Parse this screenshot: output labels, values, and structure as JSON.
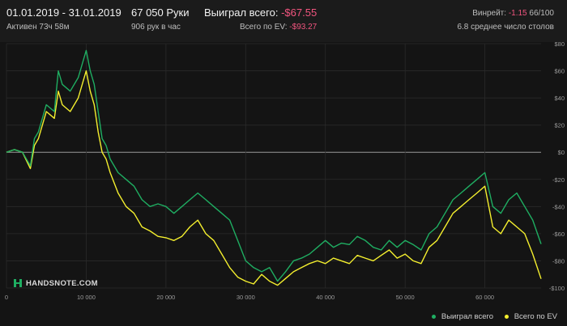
{
  "header": {
    "date_range": "01.01.2019 - 31.01.2019",
    "active": "Активен 73ч 58м",
    "hands": "67 050 Руки",
    "hands_per_hour": "906 рук в час",
    "won_label": "Выиграл всего:",
    "won_value": "-$67.55",
    "ev_label": "Всего по EV:",
    "ev_value": "-$93.27",
    "winrate_label": "Винрейт:",
    "winrate_value": "-1.15",
    "winrate_rest": "66/100",
    "tables": "6.8 среднее число столов"
  },
  "logo_text": "HANDSNOTE.COM",
  "colors": {
    "won": "#1fae62",
    "ev": "#f4ef2e",
    "background": "#141414",
    "negative": "#f2557f"
  },
  "chart_data": {
    "type": "line",
    "xlim": [
      0,
      67050
    ],
    "ylim": [
      -100,
      80
    ],
    "x_ticks": [
      0,
      10000,
      20000,
      30000,
      40000,
      50000,
      60000
    ],
    "x_tick_labels": [
      "0",
      "10 000",
      "20 000",
      "30 000",
      "40 000",
      "50 000",
      "60 000"
    ],
    "y_ticks": [
      80,
      60,
      40,
      20,
      0,
      -20,
      -40,
      -60,
      -80,
      -100
    ],
    "y_tick_labels": [
      "$80",
      "$60",
      "$40",
      "$20",
      "$0",
      "-$20",
      "-$40",
      "-$60",
      "-$80",
      "-$100"
    ],
    "grid": true,
    "legend_position": "bottom-right",
    "series": [
      {
        "name": "Выиграл всего",
        "color": "#1fae62",
        "x": [
          0,
          1000,
          2000,
          3000,
          3500,
          4000,
          5000,
          6000,
          6500,
          7000,
          8000,
          9000,
          9500,
          10000,
          10500,
          11000,
          11500,
          12000,
          12500,
          13000,
          14000,
          15000,
          16000,
          17000,
          18000,
          19000,
          20000,
          21000,
          22000,
          23000,
          24000,
          25000,
          26000,
          27000,
          28000,
          29000,
          30000,
          31000,
          32000,
          33000,
          34000,
          35000,
          36000,
          37000,
          38000,
          39000,
          40000,
          41000,
          42000,
          43000,
          44000,
          45000,
          46000,
          47000,
          48000,
          49000,
          50000,
          51000,
          52000,
          53000,
          54000,
          55000,
          56000,
          57000,
          58000,
          59000,
          60000,
          61000,
          62000,
          63000,
          64000,
          65000,
          66000,
          67050
        ],
        "y": [
          0,
          2,
          0,
          -10,
          10,
          15,
          35,
          30,
          60,
          50,
          45,
          55,
          65,
          75,
          60,
          50,
          30,
          10,
          5,
          -5,
          -15,
          -20,
          -25,
          -35,
          -40,
          -38,
          -40,
          -45,
          -40,
          -35,
          -30,
          -35,
          -40,
          -45,
          -50,
          -65,
          -80,
          -85,
          -88,
          -85,
          -95,
          -88,
          -80,
          -78,
          -75,
          -70,
          -65,
          -70,
          -67,
          -68,
          -62,
          -65,
          -70,
          -72,
          -65,
          -70,
          -65,
          -68,
          -72,
          -60,
          -55,
          -45,
          -35,
          -30,
          -25,
          -20,
          -15,
          -40,
          -45,
          -35,
          -30,
          -40,
          -50,
          -67.55
        ]
      },
      {
        "name": "Всего по EV",
        "color": "#f4ef2e",
        "x": [
          0,
          1000,
          2000,
          3000,
          3500,
          4000,
          5000,
          6000,
          6500,
          7000,
          8000,
          9000,
          9500,
          10000,
          10500,
          11000,
          11500,
          12000,
          12500,
          13000,
          14000,
          15000,
          16000,
          17000,
          18000,
          19000,
          20000,
          21000,
          22000,
          23000,
          24000,
          25000,
          26000,
          27000,
          28000,
          29000,
          30000,
          31000,
          32000,
          33000,
          34000,
          35000,
          36000,
          37000,
          38000,
          39000,
          40000,
          41000,
          42000,
          43000,
          44000,
          45000,
          46000,
          47000,
          48000,
          49000,
          50000,
          51000,
          52000,
          53000,
          54000,
          55000,
          56000,
          57000,
          58000,
          59000,
          60000,
          61000,
          62000,
          63000,
          64000,
          65000,
          66000,
          67050
        ],
        "y": [
          0,
          2,
          0,
          -12,
          5,
          10,
          30,
          25,
          45,
          35,
          30,
          40,
          50,
          60,
          45,
          35,
          15,
          0,
          -5,
          -15,
          -30,
          -40,
          -45,
          -55,
          -58,
          -62,
          -63,
          -65,
          -62,
          -55,
          -50,
          -60,
          -65,
          -75,
          -85,
          -92,
          -95,
          -97,
          -90,
          -95,
          -98,
          -93,
          -88,
          -85,
          -82,
          -80,
          -82,
          -78,
          -80,
          -82,
          -76,
          -78,
          -80,
          -76,
          -72,
          -78,
          -75,
          -80,
          -82,
          -70,
          -65,
          -55,
          -45,
          -40,
          -35,
          -30,
          -25,
          -55,
          -60,
          -50,
          -55,
          -60,
          -75,
          -93.27
        ]
      }
    ]
  }
}
